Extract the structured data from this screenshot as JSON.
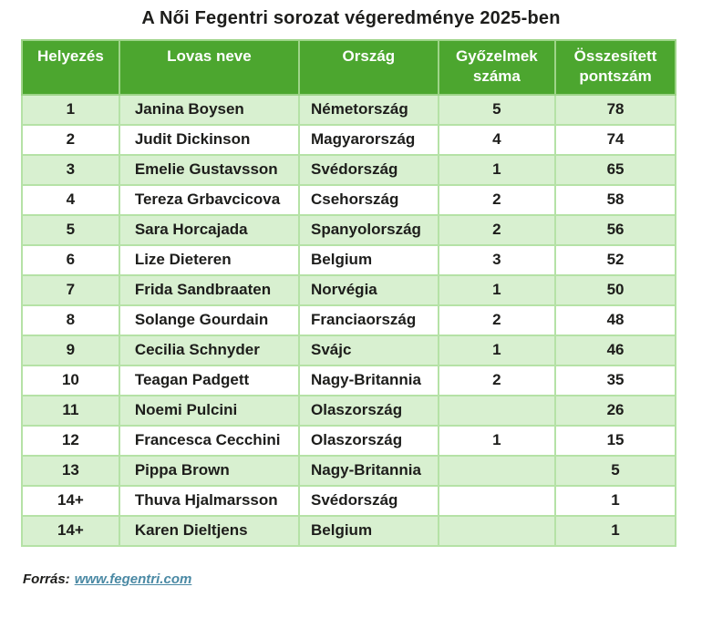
{
  "chart_data": {
    "type": "table",
    "title": "A Női Fegentri sorozat végeredménye 2025-ben",
    "columns": [
      "Helyezés",
      "Lovas neve",
      "Ország",
      "Győzelmek száma",
      "Összesített pontszám"
    ],
    "rows": [
      [
        "1",
        "Janina Boysen",
        "Németország",
        "5",
        "78"
      ],
      [
        "2",
        "Judit Dickinson",
        "Magyarország",
        "4",
        "74"
      ],
      [
        "3",
        "Emelie Gustavsson",
        "Svédország",
        "1",
        "65"
      ],
      [
        "4",
        "Tereza Grbavcicova",
        "Csehország",
        "2",
        "58"
      ],
      [
        "5",
        "Sara Horcajada",
        "Spanyolország",
        "2",
        "56"
      ],
      [
        "6",
        "Lize Dieteren",
        "Belgium",
        "3",
        "52"
      ],
      [
        "7",
        "Frida Sandbraaten",
        "Norvégia",
        "1",
        "50"
      ],
      [
        "8",
        "Solange Gourdain",
        "Franciaország",
        "2",
        "48"
      ],
      [
        "9",
        "Cecilia Schnyder",
        "Svájc",
        "1",
        "46"
      ],
      [
        "10",
        "Teagan Padgett",
        "Nagy-Britannia",
        "2",
        "35"
      ],
      [
        "11",
        "Noemi Pulcini",
        "Olaszország",
        "",
        "26"
      ],
      [
        "12",
        "Francesca Cecchini",
        "Olaszország",
        "1",
        "15"
      ],
      [
        "13",
        "Pippa Brown",
        "Nagy-Britannia",
        "",
        "5"
      ],
      [
        "14+",
        "Thuva Hjalmarsson",
        "Svédország",
        "",
        "1"
      ],
      [
        "14+",
        "Karen Dieltjens",
        "Belgium",
        "",
        "1"
      ]
    ],
    "source_label": "Forrás:",
    "source_link": "www.fegentri.com"
  },
  "colors": {
    "header_bg": "#4ca62f",
    "row_stripe": "#d8f0d0",
    "border": "#b5e2a6",
    "header_text": "#ffffff",
    "text": "#1d1d1b",
    "link": "#4a89a4"
  }
}
